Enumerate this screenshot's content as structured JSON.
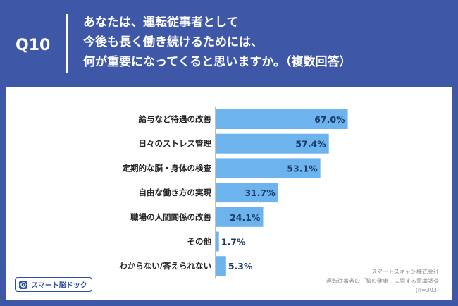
{
  "header": {
    "q_label": "Q10",
    "question_lines": [
      "あなたは、運転従事者として",
      "今後も長く働き続けるためには、",
      "何が重要になってくると思いますか。（複数回答）"
    ]
  },
  "colors": {
    "background": "#3f57a7",
    "bar": "#6db4ef",
    "axis": "#7f7f7f"
  },
  "chart_data": {
    "type": "bar",
    "orientation": "horizontal",
    "categories": [
      "給与など待遇の改善",
      "日々のストレス管理",
      "定期的な脳・身体の検査",
      "自由な働き方の実現",
      "職場の人間関係の改善",
      "その他",
      "わからない/答えられない"
    ],
    "values": [
      67.0,
      57.4,
      53.1,
      31.7,
      24.1,
      1.7,
      5.3
    ],
    "value_labels": [
      "67.0%",
      "57.4%",
      "53.1%",
      "31.7%",
      "24.1%",
      "1.7%",
      "5.3%"
    ],
    "xlim": [
      0,
      100
    ],
    "grid": false,
    "legend": "none"
  },
  "source": {
    "company": "スマートスキャン株式会社",
    "survey": "運転従事者の「脳の健康」に関する意識調査",
    "n": "(n=303)"
  },
  "logo": {
    "text": "スマート脳ドック",
    "icon": "brain-scan-icon"
  }
}
